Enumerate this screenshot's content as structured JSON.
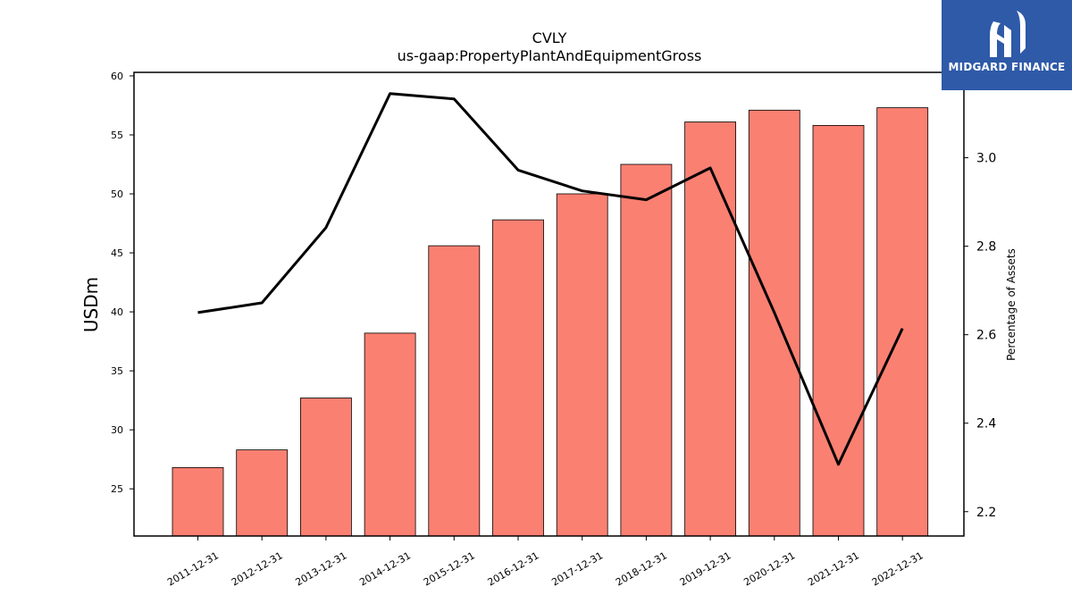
{
  "chart_data": {
    "type": "bar",
    "title": "CVLY",
    "subtitle": "us-gaap:PropertyPlantAndEquipmentGross",
    "ylabel": "USDm",
    "y2label": "Percentage of Assets",
    "categories": [
      "2011-12-31",
      "2012-12-31",
      "2013-12-31",
      "2014-12-31",
      "2015-12-31",
      "2016-12-31",
      "2017-12-31",
      "2018-12-31",
      "2019-12-31",
      "2020-12-31",
      "2021-12-31",
      "2022-12-31"
    ],
    "series": [
      {
        "type": "bar",
        "axis": "left",
        "values": [
          26.8,
          28.3,
          32.7,
          38.2,
          45.6,
          47.8,
          50.0,
          52.5,
          56.1,
          57.1,
          55.8,
          57.3
        ]
      },
      {
        "type": "line",
        "axis": "right",
        "values": [
          2.65,
          2.672,
          2.842,
          3.145,
          3.133,
          2.972,
          2.925,
          2.905,
          2.977,
          2.65,
          2.307,
          2.614
        ]
      }
    ],
    "ylim": [
      21,
      60.3
    ],
    "y2lim": [
      2.145,
      3.193
    ],
    "yticks": [
      25,
      30,
      35,
      40,
      45,
      50,
      55,
      60
    ],
    "y2ticks": [
      2.2,
      2.4,
      2.6,
      2.8,
      3.0
    ],
    "y2ticklabels": [
      "2.2",
      "2.4",
      "2.6",
      "2.8",
      "3.0"
    ],
    "bar_color": "#fa8072",
    "line_color": "#000000",
    "grid": false,
    "legend": false
  },
  "logo": {
    "text": "MIDGARD FINANCE",
    "background": "#2e5aa8"
  }
}
